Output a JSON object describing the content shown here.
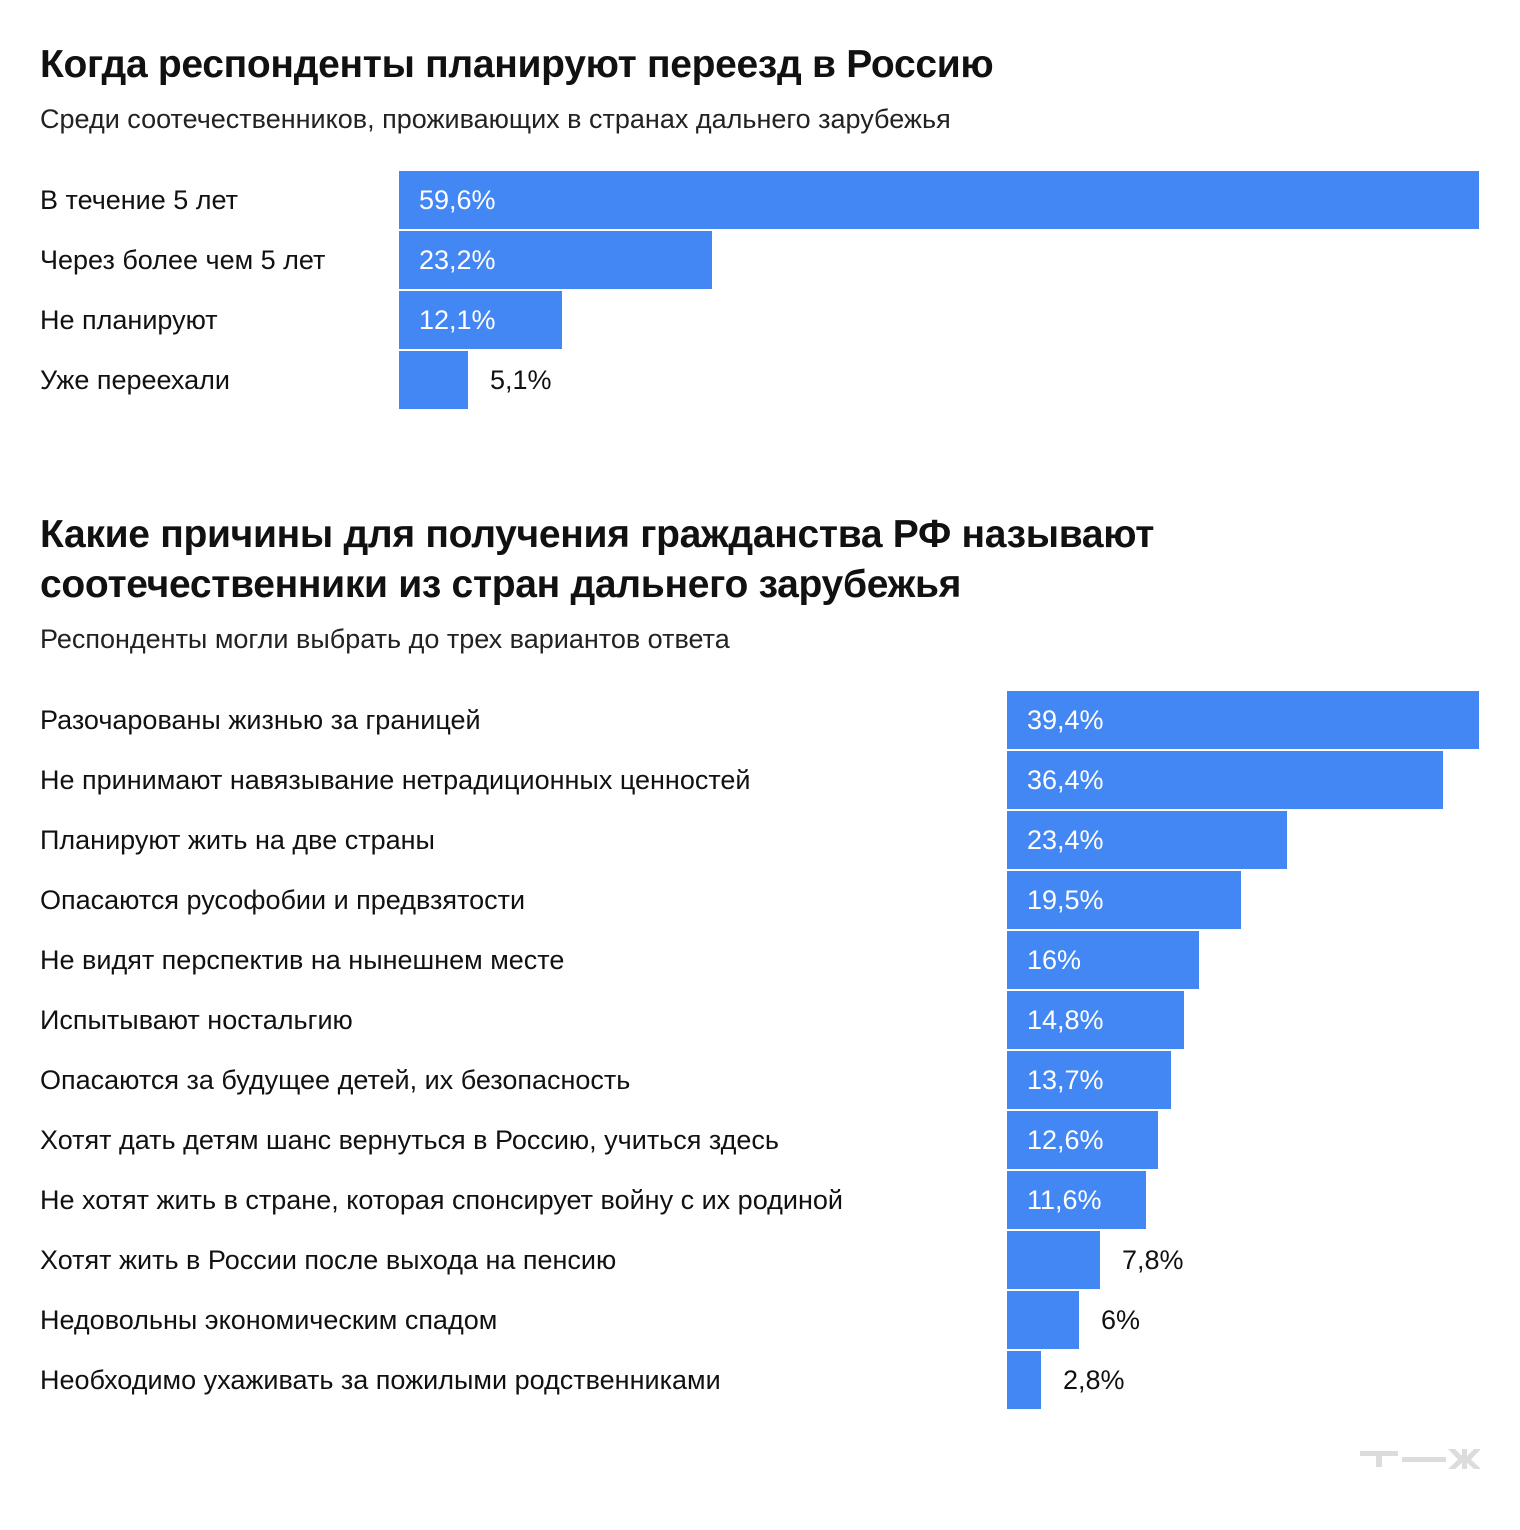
{
  "bar_color": "#4387f5",
  "logo_text": "Т—Ж",
  "chart_data": [
    {
      "type": "bar",
      "orientation": "horizontal",
      "title": "Когда респонденты планируют переезд в Россию",
      "subtitle": "Среди соотечественников, проживающих в странах дальнего зарубежья",
      "categories": [
        "В течение 5 лет",
        "Через более чем 5 лет",
        "Не планируют",
        "Уже переехали"
      ],
      "values": [
        59.6,
        23.2,
        12.1,
        5.1
      ],
      "value_labels": [
        "59,6%",
        "23,2%",
        "12,1%",
        "5,1%"
      ],
      "grid": false
    },
    {
      "type": "bar",
      "orientation": "horizontal",
      "title": "Какие причины для получения гражданства РФ называют соотечественники из стран дальнего зарубежья",
      "subtitle": "Респонденты могли выбрать до трех вариантов ответа",
      "categories": [
        "Разочарованы жизнью за границей",
        "Не принимают навязывание нетрадиционных ценностей",
        "Планируют жить на две страны",
        "Опасаются русофобии и предвзятости",
        "Не видят перспектив на нынешнем месте",
        "Испытывают ностальгию",
        "Опасаются за будущее детей, их безопасность",
        "Хотят дать детям шанс вернуться в Россию, учиться здесь",
        "Не хотят жить в стране, которая спонсирует войну с их родиной",
        "Хотят жить в России после выхода на пенсию",
        "Недовольны экономическим спадом",
        "Необходимо ухаживать за пожилыми родственниками"
      ],
      "values": [
        39.4,
        36.4,
        23.4,
        19.5,
        16,
        14.8,
        13.7,
        12.6,
        11.6,
        7.8,
        6,
        2.8
      ],
      "value_labels": [
        "39,4%",
        "36,4%",
        "23,4%",
        "19,5%",
        "16%",
        "14,8%",
        "13,7%",
        "12,6%",
        "11,6%",
        "7,8%",
        "6%",
        "2,8%"
      ],
      "grid": false
    }
  ]
}
